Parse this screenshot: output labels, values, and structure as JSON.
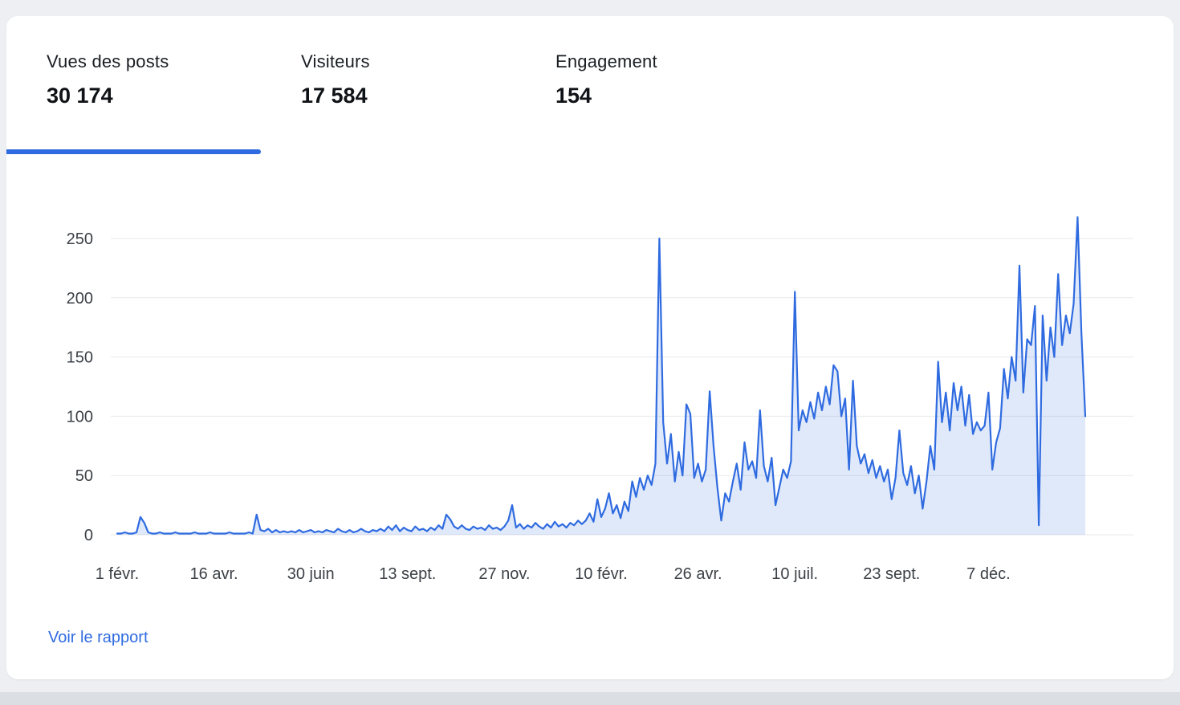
{
  "tabs": [
    {
      "label": "Vues des posts",
      "value": "30 174",
      "active": true
    },
    {
      "label": "Visiteurs",
      "value": "17 584",
      "active": false
    },
    {
      "label": "Engagement",
      "value": "154",
      "active": false
    }
  ],
  "report_link": "Voir le rapport",
  "colors": {
    "accent": "#2f6be0",
    "line": "#2f6be0",
    "area_fill": "rgba(47,107,224,0.15)",
    "grid": "#e8eaed",
    "axis_text": "#3c4147",
    "card_background": "#ffffff",
    "page_background": "#edeff2"
  },
  "chart_data": {
    "type": "area",
    "title": "",
    "series_name": "Vues des posts",
    "xlabel": "",
    "ylabel": "",
    "x_unit": "days since first tick (daily time series, ~3-day sampling)",
    "x_start_day": 0,
    "x_end_day": 750,
    "step_days": 3,
    "x_tick_days": [
      0,
      75,
      150,
      225,
      300,
      375,
      450,
      525,
      600,
      675
    ],
    "x_tick_labels": [
      "1 févr.",
      "16 avr.",
      "30 juin",
      "13 sept.",
      "27 nov.",
      "10 févr.",
      "26 avr.",
      "10 juil.",
      "23 sept.",
      "7 déc."
    ],
    "y_ticks": [
      0,
      50,
      100,
      150,
      200,
      250
    ],
    "ylim": [
      0,
      270
    ],
    "grid": true,
    "legend": false,
    "values": [
      1,
      1,
      2,
      1,
      1,
      2,
      15,
      10,
      2,
      1,
      1,
      2,
      1,
      1,
      1,
      2,
      1,
      1,
      1,
      1,
      2,
      1,
      1,
      1,
      2,
      1,
      1,
      1,
      1,
      2,
      1,
      1,
      1,
      1,
      2,
      1,
      17,
      4,
      3,
      5,
      2,
      4,
      2,
      3,
      2,
      3,
      2,
      4,
      2,
      3,
      4,
      2,
      3,
      2,
      4,
      3,
      2,
      5,
      3,
      2,
      4,
      2,
      3,
      5,
      3,
      2,
      4,
      3,
      5,
      3,
      7,
      4,
      8,
      3,
      6,
      4,
      3,
      7,
      4,
      5,
      3,
      6,
      4,
      8,
      5,
      17,
      13,
      7,
      5,
      8,
      5,
      4,
      7,
      5,
      6,
      4,
      8,
      5,
      6,
      4,
      7,
      12,
      25,
      6,
      9,
      5,
      8,
      6,
      10,
      7,
      5,
      9,
      6,
      11,
      7,
      9,
      6,
      10,
      8,
      12,
      9,
      12,
      18,
      11,
      30,
      15,
      22,
      35,
      18,
      25,
      14,
      28,
      20,
      45,
      32,
      48,
      38,
      50,
      42,
      60,
      250,
      95,
      60,
      85,
      45,
      70,
      50,
      110,
      102,
      48,
      60,
      45,
      55,
      121,
      75,
      40,
      12,
      35,
      28,
      45,
      60,
      38,
      78,
      55,
      62,
      48,
      105,
      58,
      45,
      65,
      25,
      40,
      55,
      48,
      62,
      205,
      88,
      105,
      95,
      112,
      98,
      120,
      105,
      125,
      110,
      143,
      138,
      100,
      115,
      55,
      130,
      75,
      60,
      68,
      52,
      63,
      48,
      58,
      45,
      55,
      30,
      48,
      88,
      52,
      42,
      58,
      35,
      50,
      22,
      45,
      75,
      55,
      146,
      95,
      120,
      88,
      128,
      105,
      125,
      92,
      118,
      85,
      95,
      88,
      92,
      120,
      55,
      78,
      90,
      140,
      115,
      150,
      130,
      227,
      120,
      165,
      160,
      193,
      8,
      185,
      130,
      175,
      150,
      220,
      160,
      185,
      170,
      195,
      268,
      170,
      100
    ]
  }
}
